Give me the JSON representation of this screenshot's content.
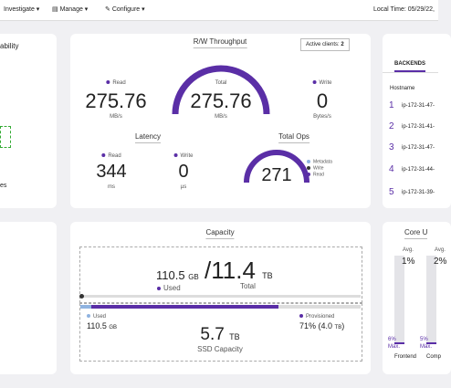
{
  "nav": {
    "items": [
      "Investigate",
      "Manage",
      "Configure"
    ],
    "local_time": "Local Time: 05/29/22,"
  },
  "left_card": {
    "title": "ability",
    "footer": "es"
  },
  "throughput": {
    "title": "R/W Throughput",
    "active_clients_label": "Active clients:",
    "active_clients": 2,
    "read": {
      "label": "Read",
      "value": 275.76,
      "unit": "MB/s"
    },
    "total": {
      "label": "Total",
      "value": 275.76,
      "unit": "MB/s"
    },
    "write": {
      "label": "Write",
      "value": 0,
      "unit": "Bytes/s"
    }
  },
  "latency": {
    "title": "Latency",
    "read": {
      "label": "Read",
      "value": 344,
      "unit": "ms"
    },
    "write": {
      "label": "Write",
      "value": 0,
      "unit": "µs"
    }
  },
  "total_ops": {
    "title": "Total Ops",
    "value": 271,
    "legend": [
      "Metadata",
      "Write",
      "Read"
    ]
  },
  "backends": {
    "tab": "BACKENDS",
    "column": "Hostname",
    "rows": [
      [
        "1",
        "ip-172-31-47-"
      ],
      [
        "2",
        "ip-172-31-41-"
      ],
      [
        "3",
        "ip-172-31-47-"
      ],
      [
        "4",
        "ip-172-31-44-"
      ],
      [
        "5",
        "ip-172-31-39-"
      ]
    ]
  },
  "capacity": {
    "title": "Capacity",
    "used": 110.5,
    "used_unit": "GB",
    "separator": "/",
    "total": 11.4,
    "total_unit": "TB",
    "used_label": "Used",
    "total_label": "Total",
    "ssd": {
      "used_label": "Used",
      "used": 110.5,
      "used_unit": "GB",
      "value": 5.7,
      "unit": "TB",
      "label": "SSD Capacity",
      "provisioned_label": "Provisioned",
      "provisioned": "71% (4.0",
      "provisioned_unit": "TB",
      "provisioned_close": ")"
    }
  },
  "core": {
    "title": "Core U",
    "bars": [
      {
        "avg_label": "Avg.",
        "avg": "1%",
        "max": "6%",
        "max_label": "Max.",
        "name": "Frontend"
      },
      {
        "avg_label": "Avg.",
        "avg": "2%",
        "max": "5%",
        "max_label": "Max.",
        "name": "Comp"
      }
    ]
  }
}
